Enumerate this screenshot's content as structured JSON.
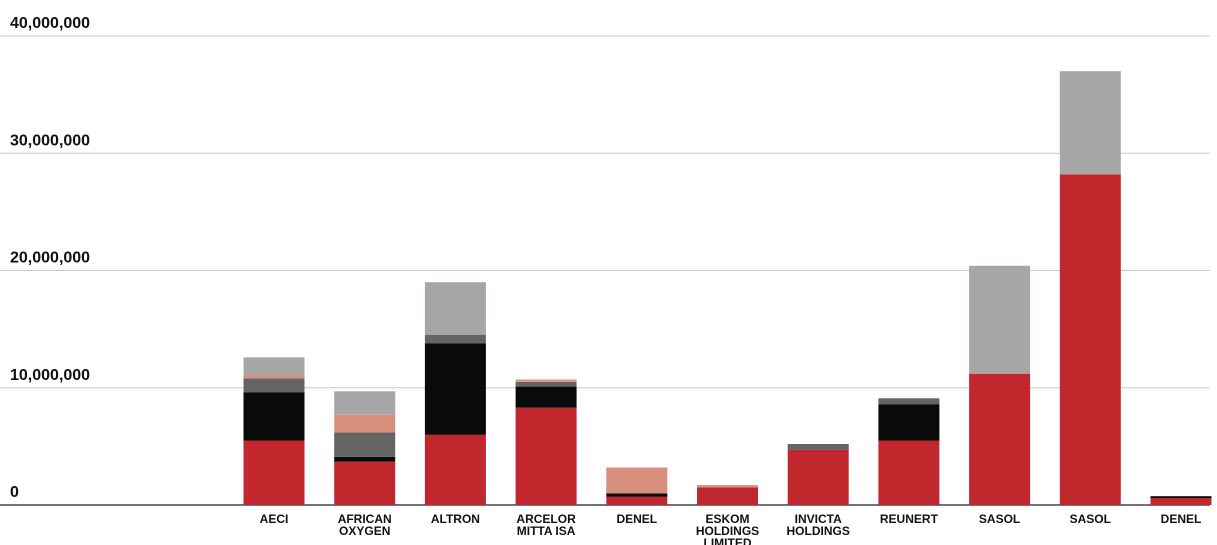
{
  "chart_data": {
    "type": "bar",
    "stacked": true,
    "title": "",
    "xlabel": "",
    "ylabel": "",
    "ylim": [
      0,
      40000000
    ],
    "yticks": [
      0,
      10000000,
      20000000,
      30000000,
      40000000
    ],
    "ytick_labels": [
      "0",
      "10,000,000",
      "20,000,000",
      "30,000,000",
      "40,000,000"
    ],
    "grid": true,
    "legend": "none",
    "categories": [
      {
        "lines": [
          "AECI"
        ]
      },
      {
        "lines": [
          "AFRICAN",
          "OXYGEN"
        ]
      },
      {
        "lines": [
          "ALTRON"
        ]
      },
      {
        "lines": [
          "ARCELOR",
          "MITTA ISA"
        ]
      },
      {
        "lines": [
          "DENEL"
        ]
      },
      {
        "lines": [
          "ESKOM",
          "HOLDINGS",
          "LIMITED"
        ]
      },
      {
        "lines": [
          "INVICTA",
          "HOLDINGS"
        ]
      },
      {
        "lines": [
          "REUNERT"
        ]
      },
      {
        "lines": [
          "SASOL"
        ]
      },
      {
        "lines": [
          "SASOL"
        ]
      },
      {
        "lines": [
          "DENEL"
        ]
      }
    ],
    "series": [
      {
        "color": "#c1272d",
        "values": [
          5500000,
          3700000,
          6000000,
          8300000,
          700000,
          1500000,
          4700000,
          5500000,
          11200000,
          28200000,
          600000
        ]
      },
      {
        "color": "#0a0a0a",
        "values": [
          4100000,
          400000,
          7800000,
          1800000,
          300000,
          0,
          0,
          3100000,
          0,
          0,
          150000
        ]
      },
      {
        "color": "#646464",
        "values": [
          1200000,
          2100000,
          700000,
          400000,
          0,
          0,
          500000,
          500000,
          0,
          0,
          0
        ]
      },
      {
        "color": "#d98f7e",
        "values": [
          300000,
          1500000,
          0,
          200000,
          2200000,
          200000,
          0,
          0,
          0,
          0,
          0
        ]
      },
      {
        "color": "#a7a5a6",
        "values": [
          1500000,
          2000000,
          4500000,
          0,
          0,
          0,
          0,
          0,
          9200000,
          8800000,
          0
        ]
      }
    ]
  }
}
